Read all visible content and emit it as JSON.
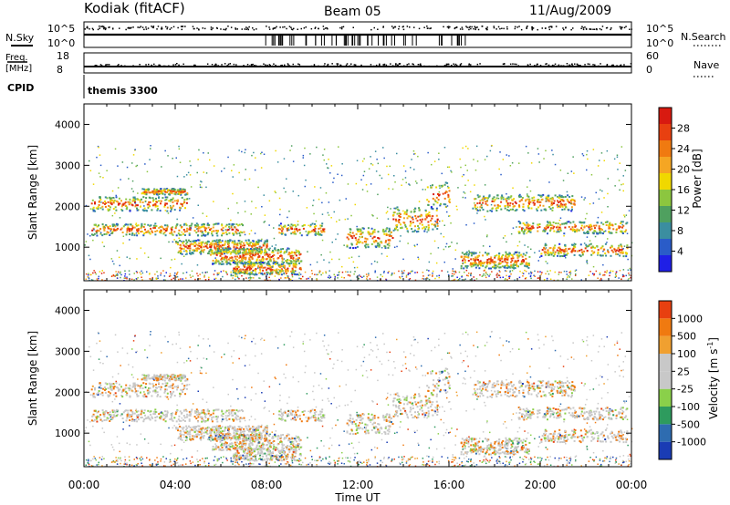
{
  "header": {
    "station": "Kodiak (fitACF)",
    "beam": "Beam 05",
    "date": "11/Aug/2009"
  },
  "top_panels": {
    "nsky_label": "N.Sky",
    "nsearch_label": "N.Search",
    "nsky_ticks": [
      "10^5",
      "10^0"
    ],
    "nsearch_ticks": [
      "10^5",
      "10^0"
    ],
    "freq_label_1": "Freq.",
    "freq_label_2": "[MHz]",
    "freq_ticks": [
      "18",
      "8"
    ],
    "nave_label": "Nave",
    "nave_ticks": [
      "60",
      "0"
    ],
    "cpid_label": "CPID",
    "cpid_value": "themis 3300"
  },
  "chart_data": [
    {
      "type": "heatmap",
      "name": "power",
      "ylabel": "Slant Range [km]",
      "yticks": [
        1000,
        2000,
        3000,
        4000
      ],
      "ylim": [
        180,
        4500
      ],
      "xlim": [
        0,
        24
      ],
      "colorbar": {
        "label": "Power [dB]",
        "levels": [
          "4",
          "8",
          "12",
          "16",
          "20",
          "24",
          "28"
        ],
        "colors": [
          "#1f1fe6",
          "#2a5cc8",
          "#3b8ea0",
          "#4fa05f",
          "#8cc63f",
          "#f0d800",
          "#f5a623",
          "#f07a10",
          "#e84010",
          "#d81a10"
        ]
      }
    },
    {
      "type": "heatmap",
      "name": "velocity",
      "ylabel": "Slant Range [km]",
      "yticks": [
        1000,
        2000,
        3000,
        4000
      ],
      "ylim": [
        180,
        4500
      ],
      "xlim": [
        0,
        24
      ],
      "xlabel": "Time UT",
      "xticks": [
        "00:00",
        "04:00",
        "08:00",
        "12:00",
        "16:00",
        "20:00",
        "00:00"
      ],
      "colorbar": {
        "label": "Velocity [m s",
        "label_sup": "-1",
        "label_end": "]",
        "levels": [
          "1000",
          "500",
          "100",
          "25",
          "-25",
          "-100",
          "-500",
          "-1000"
        ],
        "colors": [
          "#1a3cb4",
          "#2e6cb0",
          "#2e9b5e",
          "#8ad04a",
          "#c8c8c8",
          "#c8c8c8",
          "#f0a030",
          "#f07a10",
          "#e84010"
        ]
      }
    }
  ],
  "bands": [
    [
      0.3,
      7.0,
      1300,
      1600,
      5
    ],
    [
      0.3,
      4.5,
      1900,
      2250,
      5
    ],
    [
      2.5,
      4.5,
      2300,
      2450,
      8
    ],
    [
      4.0,
      8.0,
      850,
      1200,
      9
    ],
    [
      5.5,
      9.5,
      600,
      1000,
      9
    ],
    [
      6.5,
      9.5,
      350,
      650,
      8
    ],
    [
      8.5,
      10.5,
      1300,
      1600,
      5
    ],
    [
      11.5,
      13.5,
      1000,
      1500,
      7
    ],
    [
      13.5,
      15.5,
      1400,
      2000,
      7
    ],
    [
      15.0,
      16.0,
      2000,
      2600,
      5
    ],
    [
      16.5,
      19.5,
      500,
      900,
      9
    ],
    [
      17.0,
      21.5,
      1900,
      2300,
      6
    ],
    [
      19.0,
      23.8,
      1350,
      1650,
      5
    ],
    [
      20.0,
      23.8,
      800,
      1100,
      5
    ]
  ]
}
